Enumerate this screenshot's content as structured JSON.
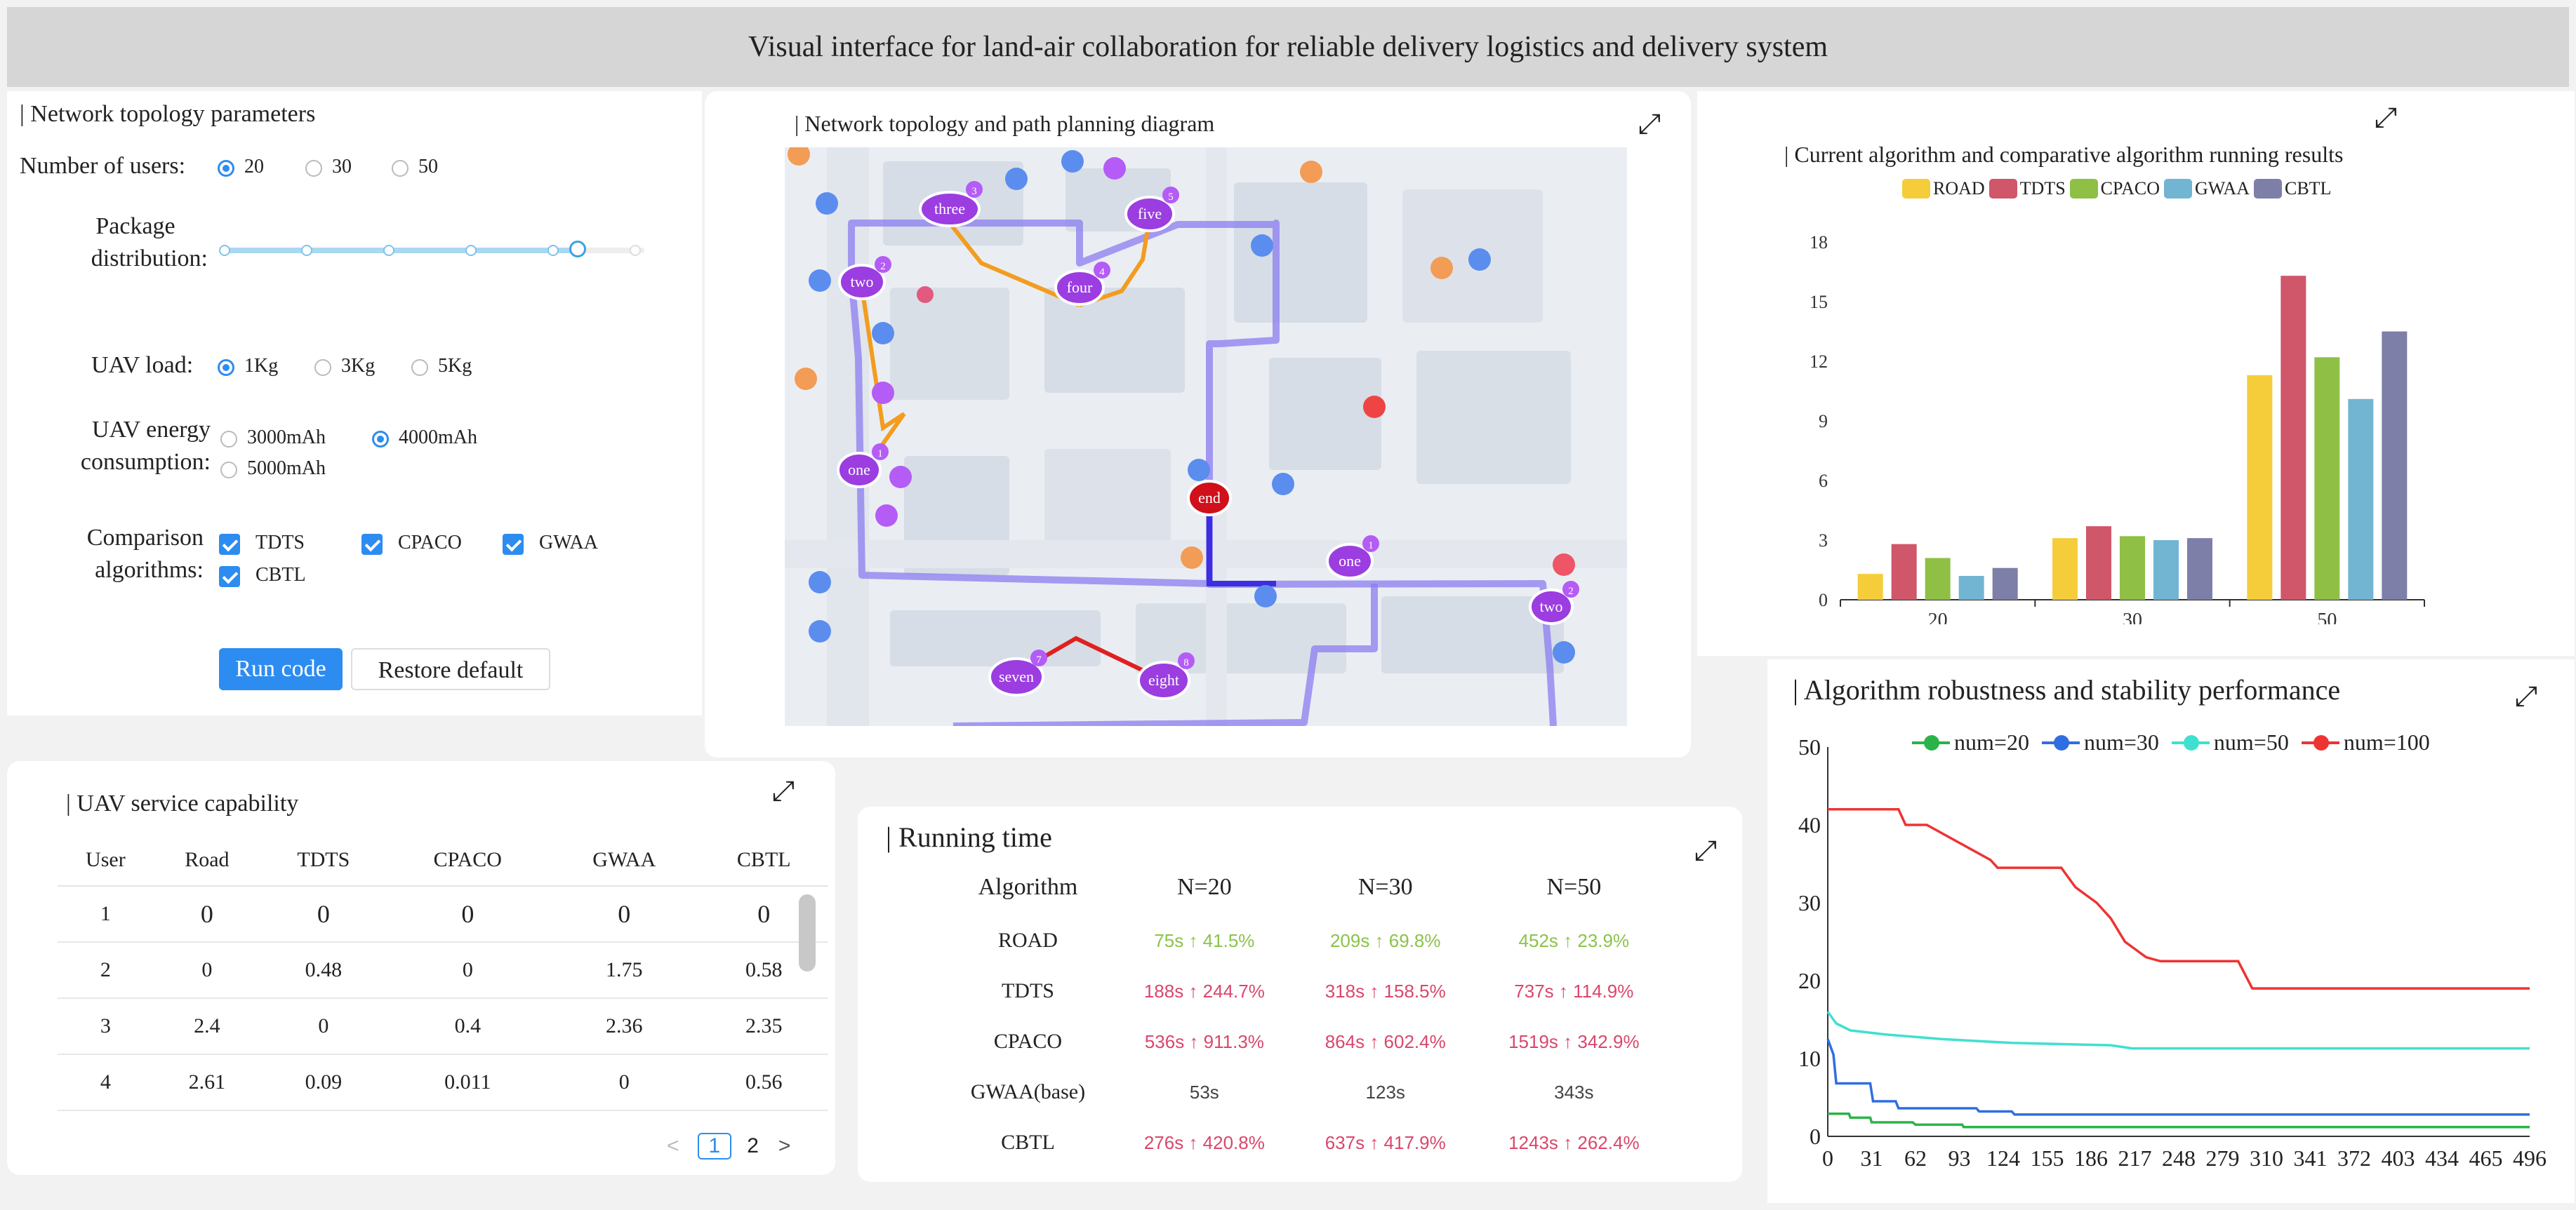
{
  "header": {
    "title": "Visual interface for land-air collaboration for reliable delivery logistics and delivery system"
  },
  "params": {
    "title": "| Network topology parameters",
    "users": {
      "label": "Number of users:",
      "options": [
        "20",
        "30",
        "50"
      ]
    },
    "package": {
      "label_line1": "Package",
      "label_line2": "distribution:"
    },
    "uav_load": {
      "label": "UAV load:",
      "options": [
        "1Kg",
        "3Kg",
        "5Kg"
      ]
    },
    "energy": {
      "label_line1": "UAV energy",
      "label_line2": "consumption:",
      "options": [
        "3000mAh",
        "4000mAh",
        "5000mAh"
      ]
    },
    "algorithms": {
      "label_line1": "Comparison",
      "label_line2": "algorithms:",
      "options": [
        "TDTS",
        "CPACO",
        "GWAA",
        "CBTL"
      ]
    },
    "run_label": "Run code",
    "restore_label": "Restore default"
  },
  "map": {
    "title": "| Network topology and path planning diagram",
    "nodes": [
      {
        "label": "three",
        "badge": "3"
      },
      {
        "label": "five",
        "badge": "5"
      },
      {
        "label": "two",
        "badge": "2"
      },
      {
        "label": "four",
        "badge": "4"
      },
      {
        "label": "one",
        "badge": "1"
      },
      {
        "label": "end"
      },
      {
        "label": "one",
        "badge": "1"
      },
      {
        "label": "two",
        "badge": "2"
      },
      {
        "label": "seven",
        "badge": "7"
      },
      {
        "label": "eight",
        "badge": "8"
      }
    ]
  },
  "service": {
    "title": "| UAV service capability",
    "columns": [
      "User",
      "Road",
      "TDTS",
      "CPACO",
      "GWAA",
      "CBTL"
    ],
    "rows": [
      [
        "1",
        "0",
        "0",
        "0",
        "0",
        "0"
      ],
      [
        "2",
        "0",
        "0.48",
        "0",
        "1.75",
        "0.58"
      ],
      [
        "3",
        "2.4",
        "0",
        "0.4",
        "2.36",
        "2.35"
      ],
      [
        "4",
        "2.61",
        "0.09",
        "0.011",
        "0",
        "0.56"
      ]
    ],
    "pagination": {
      "prev": "<",
      "pages": [
        "1",
        "2"
      ],
      "next": ">"
    }
  },
  "running": {
    "title": "| Running time",
    "columns": [
      "Algorithm",
      "N=20",
      "N=30",
      "N=50"
    ],
    "rows": [
      {
        "algorithm": "ROAD",
        "n20": "75s ↑ 41.5%",
        "n30": "209s ↑ 69.8%",
        "n50": "452s ↑ 23.9%",
        "tone": "g"
      },
      {
        "algorithm": "TDTS",
        "n20": "188s ↑ 244.7%",
        "n30": "318s ↑ 158.5%",
        "n50": "737s ↑ 114.9%",
        "tone": "r"
      },
      {
        "algorithm": "CPACO",
        "n20": "536s ↑ 911.3%",
        "n30": "864s ↑ 602.4%",
        "n50": "1519s ↑ 342.9%",
        "tone": "r"
      },
      {
        "algorithm": "GWAA(base)",
        "n20": "53s",
        "n30": "123s",
        "n50": "343s",
        "tone": "k"
      },
      {
        "algorithm": "CBTL",
        "n20": "276s ↑ 420.8%",
        "n30": "637s ↑ 417.9%",
        "n50": "1243s ↑ 262.4%",
        "tone": "r"
      }
    ]
  },
  "colors": {
    "accent": "#2d8cf0",
    "road": "#f5cd3a",
    "tdts": "#d0566a",
    "cpaco": "#8fbf45",
    "gwaa": "#72b5d2",
    "cbtl": "#7e7fa8"
  },
  "chart_data": [
    {
      "type": "bar",
      "title": "| Current algorithm and comparative algorithm running results",
      "categories": [
        "20",
        "30",
        "50"
      ],
      "series": [
        {
          "name": "ROAD",
          "values": [
            1.3,
            3.1,
            11.3
          ]
        },
        {
          "name": "TDTS",
          "values": [
            2.8,
            3.7,
            16.3
          ]
        },
        {
          "name": "CPACO",
          "values": [
            2.1,
            3.2,
            12.2
          ]
        },
        {
          "name": "GWAA",
          "values": [
            1.2,
            3.0,
            10.1
          ]
        },
        {
          "name": "CBTL",
          "values": [
            1.6,
            3.1,
            13.5
          ]
        }
      ],
      "ylim": [
        0,
        18
      ],
      "yticks": [
        "0",
        "3",
        "6",
        "9",
        "12",
        "15",
        "18"
      ],
      "legend": "top"
    },
    {
      "type": "line",
      "title": "| Algorithm robustness and stability performance",
      "xlim": [
        0,
        496
      ],
      "ylim": [
        0,
        50
      ],
      "xticks": [
        "0",
        "31",
        "62",
        "93",
        "124",
        "155",
        "186",
        "217",
        "248",
        "279",
        "310",
        "341",
        "372",
        "403",
        "434",
        "465",
        "496"
      ],
      "yticks": [
        "0",
        "10",
        "20",
        "30",
        "40",
        "50"
      ],
      "legend": "top",
      "series": [
        {
          "name": "num=20",
          "color": "#2bb34a",
          "points": [
            [
              0,
              2.9
            ],
            [
              15,
              2.9
            ],
            [
              16,
              2.4
            ],
            [
              30,
              2.4
            ],
            [
              31,
              1.8
            ],
            [
              60,
              1.8
            ],
            [
              62,
              1.5
            ],
            [
              95,
              1.5
            ],
            [
              96,
              1.2
            ],
            [
              496,
              1.2
            ]
          ]
        },
        {
          "name": "num=30",
          "color": "#2f6ee0",
          "points": [
            [
              0,
              12.5
            ],
            [
              4,
              10.5
            ],
            [
              6,
              6.8
            ],
            [
              30,
              6.8
            ],
            [
              32,
              4.5
            ],
            [
              48,
              4.5
            ],
            [
              50,
              3.6
            ],
            [
              105,
              3.6
            ],
            [
              107,
              3.2
            ],
            [
              130,
              3.2
            ],
            [
              132,
              2.8
            ],
            [
              496,
              2.8
            ]
          ]
        },
        {
          "name": "num=50",
          "color": "#3fe0d0",
          "points": [
            [
              0,
              16
            ],
            [
              6,
              14.5
            ],
            [
              16,
              13.6
            ],
            [
              40,
              13.1
            ],
            [
              80,
              12.5
            ],
            [
              130,
              12
            ],
            [
              200,
              11.7
            ],
            [
              215,
              11.3
            ],
            [
              496,
              11.3
            ]
          ]
        },
        {
          "name": "num=100",
          "color": "#ee3333",
          "points": [
            [
              0,
              42
            ],
            [
              50,
              42
            ],
            [
              55,
              40
            ],
            [
              70,
              40
            ],
            [
              80,
              39
            ],
            [
              100,
              37
            ],
            [
              115,
              35.5
            ],
            [
              120,
              34.5
            ],
            [
              165,
              34.5
            ],
            [
              175,
              32
            ],
            [
              190,
              30
            ],
            [
              200,
              28
            ],
            [
              210,
              25
            ],
            [
              225,
              23
            ],
            [
              235,
              22.5
            ],
            [
              290,
              22.5
            ],
            [
              300,
              19
            ],
            [
              496,
              19
            ]
          ]
        }
      ]
    }
  ]
}
